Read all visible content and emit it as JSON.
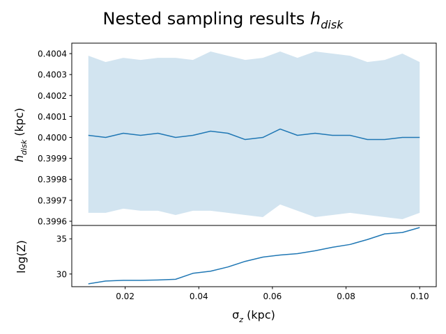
{
  "title": {
    "main": "Nested sampling results ",
    "sym": "h",
    "sub": "disk"
  },
  "top_panel": {
    "ylabel": {
      "sym": "h",
      "sub": "disk",
      "rest": " (kpc)"
    }
  },
  "bottom_panel": {
    "ylabel": "log(Z)"
  },
  "xlabel": {
    "sym": "σ",
    "sub": "z",
    "rest": " (kpc)"
  },
  "chart_data": [
    {
      "type": "area",
      "panel": "top",
      "x": [
        0.01,
        0.0147,
        0.0195,
        0.0242,
        0.0289,
        0.0337,
        0.0384,
        0.0432,
        0.0479,
        0.0526,
        0.0574,
        0.0621,
        0.0668,
        0.0716,
        0.0763,
        0.0811,
        0.0858,
        0.0905,
        0.0953,
        0.1
      ],
      "series": [
        {
          "role": "line",
          "values": [
            0.40001,
            0.4,
            0.40002,
            0.40001,
            0.40002,
            0.4,
            0.40001,
            0.40003,
            0.40002,
            0.39999,
            0.4,
            0.40004,
            0.40001,
            0.40002,
            0.40001,
            0.40001,
            0.39999,
            0.39999,
            0.4,
            0.4
          ]
        },
        {
          "role": "band-upper",
          "values": [
            0.40039,
            0.40036,
            0.40038,
            0.40037,
            0.40038,
            0.40038,
            0.40037,
            0.40041,
            0.40039,
            0.40037,
            0.40038,
            0.40041,
            0.40038,
            0.40041,
            0.4004,
            0.40039,
            0.40036,
            0.40037,
            0.4004,
            0.40036
          ]
        },
        {
          "role": "band-lower",
          "values": [
            0.39964,
            0.39964,
            0.39966,
            0.39965,
            0.39965,
            0.39963,
            0.39965,
            0.39965,
            0.39964,
            0.39963,
            0.39962,
            0.39968,
            0.39965,
            0.39962,
            0.39963,
            0.39964,
            0.39963,
            0.39962,
            0.39961,
            0.39964
          ]
        }
      ],
      "xlim": [
        0.0055,
        0.1045
      ],
      "ylim": [
        0.39958,
        0.40045
      ],
      "yticks": [
        "0.3996",
        "0.3997",
        "0.3998",
        "0.3999",
        "0.4000",
        "0.4001",
        "0.4002",
        "0.4003",
        "0.4004"
      ],
      "ytick_values": [
        0.3996,
        0.3997,
        0.3998,
        0.3999,
        0.4,
        0.4001,
        0.4002,
        0.4003,
        0.4004
      ],
      "color": "#1f77b4",
      "grid": false
    },
    {
      "type": "line",
      "panel": "bottom",
      "x": [
        0.01,
        0.0147,
        0.0195,
        0.0242,
        0.0289,
        0.0337,
        0.0384,
        0.0432,
        0.0479,
        0.0526,
        0.0574,
        0.0621,
        0.0668,
        0.0716,
        0.0763,
        0.0811,
        0.0858,
        0.0905,
        0.0953,
        0.1
      ],
      "series": [
        {
          "values": [
            28.6,
            29.0,
            29.1,
            29.1,
            29.15,
            29.25,
            30.1,
            30.4,
            31.0,
            31.8,
            32.4,
            32.7,
            32.9,
            33.3,
            33.8,
            34.2,
            34.9,
            35.7,
            35.9,
            36.6
          ]
        }
      ],
      "xlim": [
        0.0055,
        0.1045
      ],
      "ylim": [
        28.2,
        36.9
      ],
      "yticks": [
        "30",
        "35"
      ],
      "ytick_values": [
        30,
        35
      ],
      "xticks": [
        "0.02",
        "0.04",
        "0.06",
        "0.08",
        "0.10"
      ],
      "xtick_values": [
        0.02,
        0.04,
        0.06,
        0.08,
        0.1
      ],
      "color": "#1f77b4",
      "grid": false
    }
  ]
}
